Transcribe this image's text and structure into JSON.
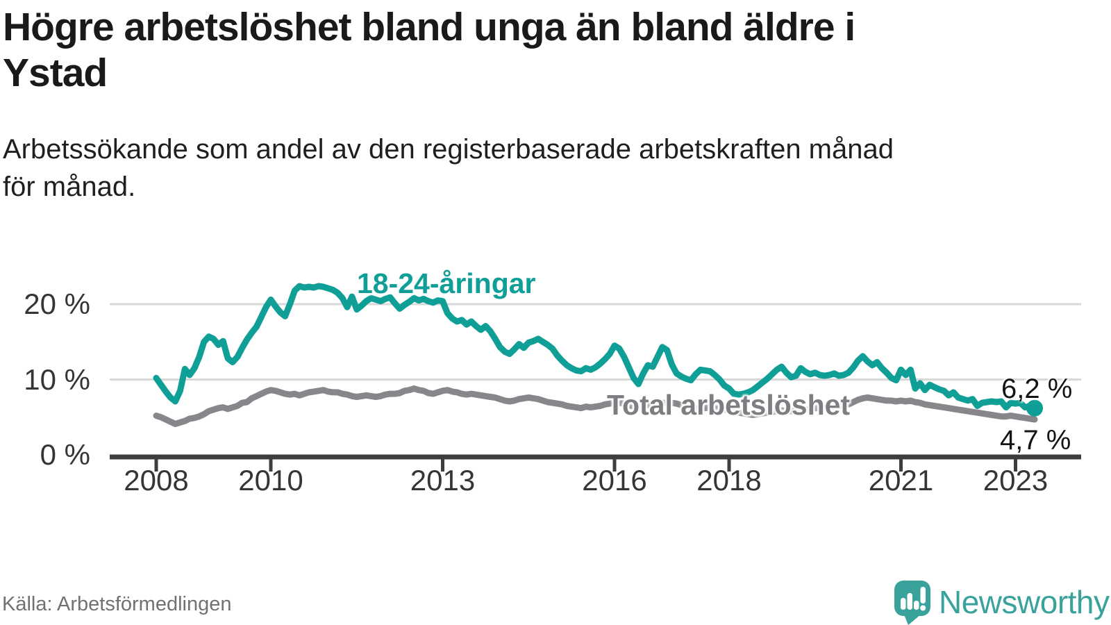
{
  "header": {
    "title_lines": [
      "Högre arbetslöshet bland unga än bland äldre i",
      "Ystad"
    ],
    "subtitle_lines": [
      "Arbetssökande som andel av den registerbaserade arbetskraften månad",
      "för månad."
    ]
  },
  "chart_data": {
    "type": "line",
    "title": "Högre arbetslöshet bland unga än bland äldre i Ystad",
    "subtitle": "Arbetssökande som andel av den registerbaserade arbetskraften månad för månad.",
    "x_unit": "month",
    "x_start": "2008-01",
    "x_end": "2023-05",
    "x_tick_years": [
      "2008",
      "2010",
      "2013",
      "2016",
      "2018",
      "2021",
      "2023"
    ],
    "y_ticks": [
      {
        "label": "0 %",
        "value": 0
      },
      {
        "label": "10 %",
        "value": 10
      },
      {
        "label": "20 %",
        "value": 20
      }
    ],
    "y_range": [
      0,
      24
    ],
    "grid": "horizontal-only",
    "legend_position": "inline-labels-on-lines",
    "colors": {
      "youth": "#0f9f96",
      "total": "#87868b",
      "gridline": "#d8d8d8",
      "axis": "#3e3e3e"
    },
    "series": [
      {
        "name": "18-24-åringar",
        "color": "#0f9f96",
        "end_label": "6,2 %",
        "end_value": 6.2,
        "values": [
          10.2,
          9.3,
          8.4,
          7.6,
          7.1,
          8.5,
          11.4,
          10.6,
          11.5,
          13.0,
          15.0,
          15.7,
          15.4,
          14.6,
          15.1,
          12.8,
          12.3,
          13.0,
          14.2,
          15.3,
          16.2,
          17.0,
          18.3,
          19.6,
          20.6,
          19.7,
          18.9,
          18.4,
          20.0,
          21.8,
          22.4,
          22.2,
          22.3,
          22.2,
          22.4,
          22.3,
          22.1,
          21.9,
          21.5,
          20.8,
          19.6,
          21.0,
          19.3,
          19.8,
          20.4,
          20.8,
          20.6,
          20.4,
          20.7,
          20.9,
          20.1,
          19.4,
          19.9,
          20.3,
          20.8,
          20.5,
          20.7,
          20.4,
          20.2,
          20.5,
          20.4,
          18.8,
          18.1,
          17.7,
          17.9,
          17.3,
          17.7,
          17.1,
          16.6,
          17.1,
          16.4,
          15.4,
          14.3,
          13.7,
          13.4,
          14.0,
          14.7,
          14.2,
          14.9,
          15.1,
          15.4,
          15.0,
          14.6,
          14.1,
          13.2,
          12.5,
          11.9,
          11.5,
          11.2,
          11.1,
          11.5,
          11.3,
          11.6,
          12.1,
          12.7,
          13.4,
          14.5,
          14.1,
          13.0,
          11.6,
          10.2,
          9.4,
          10.8,
          11.9,
          11.7,
          13.0,
          14.3,
          13.9,
          12.0,
          10.8,
          10.4,
          10.1,
          9.9,
          10.7,
          11.3,
          11.2,
          11.1,
          10.6,
          10.0,
          9.2,
          8.8,
          8.1,
          8.0,
          8.1,
          8.3,
          8.6,
          9.1,
          9.6,
          10.1,
          10.7,
          11.3,
          11.7,
          10.9,
          10.3,
          10.5,
          11.5,
          11.0,
          10.7,
          10.9,
          10.6,
          10.5,
          10.6,
          10.8,
          10.5,
          10.6,
          10.9,
          11.6,
          12.5,
          13.1,
          12.4,
          11.9,
          12.3,
          11.5,
          10.9,
          10.2,
          9.9,
          11.3,
          10.6,
          11.3,
          8.8,
          9.5,
          8.6,
          9.3,
          9.0,
          8.7,
          8.5,
          7.9,
          8.3,
          7.6,
          7.4,
          7.2,
          7.4,
          6.5,
          6.9,
          7.0,
          7.1,
          7.0,
          7.1,
          6.3,
          6.9,
          6.8,
          6.9,
          6.3,
          6.5,
          6.2
        ]
      },
      {
        "name": "Total arbetslöshet",
        "color": "#87868b",
        "end_label": "4,7 %",
        "end_value": 4.7,
        "values": [
          5.2,
          5.0,
          4.7,
          4.4,
          4.1,
          4.3,
          4.5,
          4.8,
          4.9,
          5.1,
          5.4,
          5.8,
          6.0,
          6.2,
          6.3,
          6.1,
          6.3,
          6.5,
          6.9,
          7.0,
          7.5,
          7.8,
          8.1,
          8.4,
          8.6,
          8.5,
          8.3,
          8.1,
          8.0,
          8.1,
          7.9,
          8.1,
          8.3,
          8.4,
          8.5,
          8.6,
          8.4,
          8.3,
          8.3,
          8.1,
          8.0,
          7.8,
          7.7,
          7.8,
          7.9,
          7.8,
          7.7,
          7.8,
          8.0,
          8.1,
          8.1,
          8.2,
          8.5,
          8.6,
          8.8,
          8.6,
          8.5,
          8.2,
          8.1,
          8.3,
          8.5,
          8.6,
          8.4,
          8.3,
          8.1,
          8.0,
          8.1,
          8.0,
          7.9,
          7.8,
          7.7,
          7.6,
          7.4,
          7.2,
          7.1,
          7.2,
          7.4,
          7.5,
          7.6,
          7.5,
          7.4,
          7.2,
          7.0,
          6.9,
          6.8,
          6.7,
          6.5,
          6.4,
          6.3,
          6.2,
          6.4,
          6.3,
          6.4,
          6.5,
          6.7,
          6.8,
          7.0,
          6.9,
          6.8,
          6.6,
          6.4,
          6.3,
          6.5,
          6.6,
          6.7,
          6.8,
          6.9,
          6.9,
          6.9,
          6.8,
          6.6,
          6.4,
          6.2,
          6.1,
          6.3,
          6.2,
          6.3,
          6.2,
          6.1,
          6.0,
          5.9,
          5.7,
          5.6,
          5.5,
          5.4,
          5.3,
          5.4,
          5.5,
          5.6,
          5.7,
          5.8,
          5.9,
          5.8,
          5.8,
          5.9,
          6.0,
          6.0,
          6.1,
          6.2,
          6.2,
          6.3,
          6.3,
          6.4,
          6.5,
          6.6,
          6.7,
          7.0,
          7.3,
          7.5,
          7.6,
          7.5,
          7.4,
          7.3,
          7.2,
          7.2,
          7.1,
          7.2,
          7.1,
          7.2,
          7.0,
          6.9,
          6.7,
          6.6,
          6.5,
          6.4,
          6.3,
          6.2,
          6.1,
          6.0,
          5.9,
          5.8,
          5.7,
          5.6,
          5.5,
          5.4,
          5.3,
          5.2,
          5.1,
          5.1,
          5.2,
          5.1,
          5.0,
          4.9,
          4.8,
          4.7
        ]
      }
    ]
  },
  "footer": {
    "source": "Källa: Arbetsförmedlingen",
    "brand_name": "Newsworthy"
  }
}
